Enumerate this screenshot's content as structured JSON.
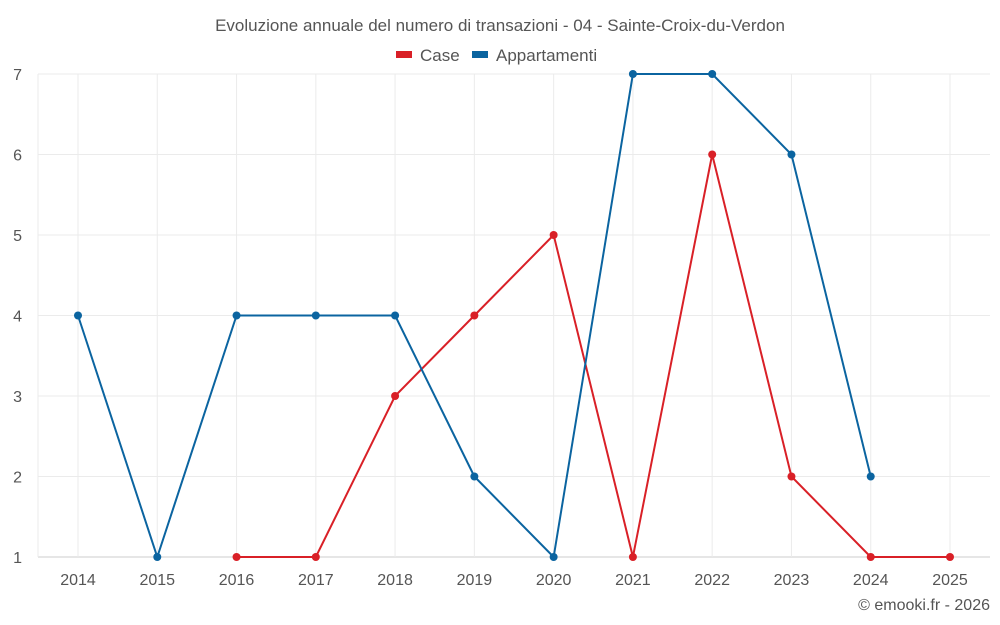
{
  "chart_data": {
    "type": "line",
    "title": "Evoluzione annuale del numero di transazioni - 04 - Sainte-Croix-du-Verdon",
    "x": [
      "2014",
      "2015",
      "2016",
      "2017",
      "2018",
      "2019",
      "2020",
      "2021",
      "2022",
      "2023",
      "2024",
      "2025"
    ],
    "series": [
      {
        "name": "Case",
        "color": "#d92027",
        "values": [
          null,
          null,
          1,
          1,
          3,
          4,
          5,
          1,
          6,
          2,
          1,
          1
        ]
      },
      {
        "name": "Appartamenti",
        "color": "#0b64a0",
        "values": [
          4,
          1,
          4,
          4,
          4,
          2,
          1,
          7,
          7,
          6,
          2,
          null
        ]
      }
    ],
    "ylim": [
      1,
      7
    ],
    "yticks": [
      "1",
      "2",
      "3",
      "4",
      "5",
      "6",
      "7"
    ],
    "grid": true,
    "legend": "top-center",
    "xlabel": "",
    "ylabel": ""
  },
  "credit": "© emooki.fr - 2026"
}
